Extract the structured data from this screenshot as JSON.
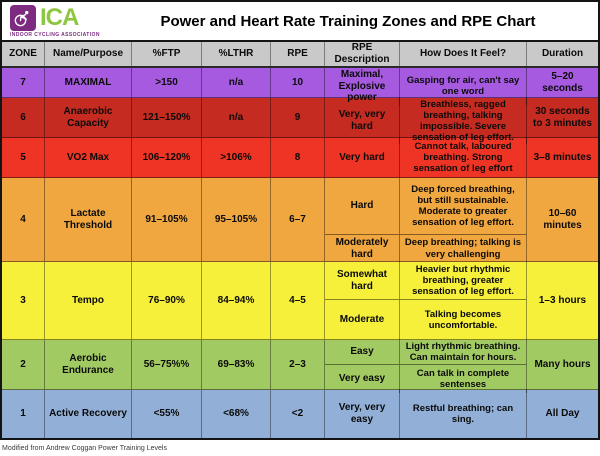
{
  "logo": {
    "abbr": "ICA",
    "subtext": "INDOOR CYCLING ASSOCIATION"
  },
  "title": "Power and Heart Rate Training Zones and RPE Chart",
  "footer_note": "Modified from Andrew Coggan Power Training Levels",
  "colors": {
    "logo_purple": "#7c2b80",
    "logo_green": "#8dc63f",
    "header_bg": "#c9c9c9",
    "zone7": "#a65ae0",
    "zone6": "#c52b20",
    "zone5": "#ee3424",
    "zone4": "#f0a73f",
    "zone3": "#f6f03b",
    "zone2": "#a2ca62",
    "zone1": "#92b0d7"
  },
  "chart_data": {
    "type": "table",
    "title": "Power and Heart Rate Training Zones and RPE Chart",
    "columns": [
      "ZONE",
      "Name/Purpose",
      "%FTP",
      "%LTHR",
      "RPE",
      "RPE Description",
      "How Does It Feel?",
      "Duration"
    ],
    "zones": [
      {
        "zone": "7",
        "name": "MAXIMAL",
        "ftp": ">150",
        "lthr": "n/a",
        "rpe": "10",
        "color": "#a65ae0",
        "rpe_rows": [
          {
            "description": "Maximal, Explosive power",
            "feel": "Gasping for air, can't say one word"
          }
        ],
        "duration": "5–20 seconds"
      },
      {
        "zone": "6",
        "name": "Anaerobic Capacity",
        "ftp": "121–150%",
        "lthr": "n/a",
        "rpe": "9",
        "color": "#c52b20",
        "rpe_rows": [
          {
            "description": "Very, very hard",
            "feel": "Breathless, ragged breathing, talking impossible. Severe sensation of leg effort."
          }
        ],
        "duration": "30 seconds to 3 minutes"
      },
      {
        "zone": "5",
        "name": "VO2 Max",
        "ftp": "106–120%",
        "lthr": ">106%",
        "rpe": "8",
        "color": "#ee3424",
        "rpe_rows": [
          {
            "description": "Very hard",
            "feel": "Cannot talk, laboured breathing. Strong sensation of leg effort"
          }
        ],
        "duration": "3–8 minutes"
      },
      {
        "zone": "4",
        "name": "Lactate Threshold",
        "ftp": "91–105%",
        "lthr": "95–105%",
        "rpe": "6–7",
        "color": "#f0a73f",
        "rpe_rows": [
          {
            "description": "Hard",
            "feel": "Deep forced breathing, but still sustainable. Moderate to greater sensation of leg effort."
          },
          {
            "description": "Moderately hard",
            "feel": "Deep breathing; talking is very challenging"
          }
        ],
        "duration": "10–60 minutes"
      },
      {
        "zone": "3",
        "name": "Tempo",
        "ftp": "76–90%",
        "lthr": "84–94%",
        "rpe": "4–5",
        "color": "#f6f03b",
        "rpe_rows": [
          {
            "description": "Somewhat hard",
            "feel": "Heavier but rhythmic breathing, greater sensation of leg effort."
          },
          {
            "description": "Moderate",
            "feel": "Talking becomes uncomfortable."
          }
        ],
        "duration": "1–3 hours"
      },
      {
        "zone": "2",
        "name": "Aerobic Endurance",
        "ftp": "56–75%%",
        "lthr": "69–83%",
        "rpe": "2–3",
        "color": "#a2ca62",
        "rpe_rows": [
          {
            "description": "Easy",
            "feel": "Light rhythmic breathing. Can maintain for hours."
          },
          {
            "description": "Very easy",
            "feel": "Can talk in complete sentenses"
          }
        ],
        "duration": "Many hours"
      },
      {
        "zone": "1",
        "name": "Active Recovery",
        "ftp": "<55%",
        "lthr": "<68%",
        "rpe": "<2",
        "color": "#92b0d7",
        "rpe_rows": [
          {
            "description": "Very, very easy",
            "feel": "Restful breathing; can sing."
          }
        ],
        "duration": "All Day"
      }
    ]
  }
}
